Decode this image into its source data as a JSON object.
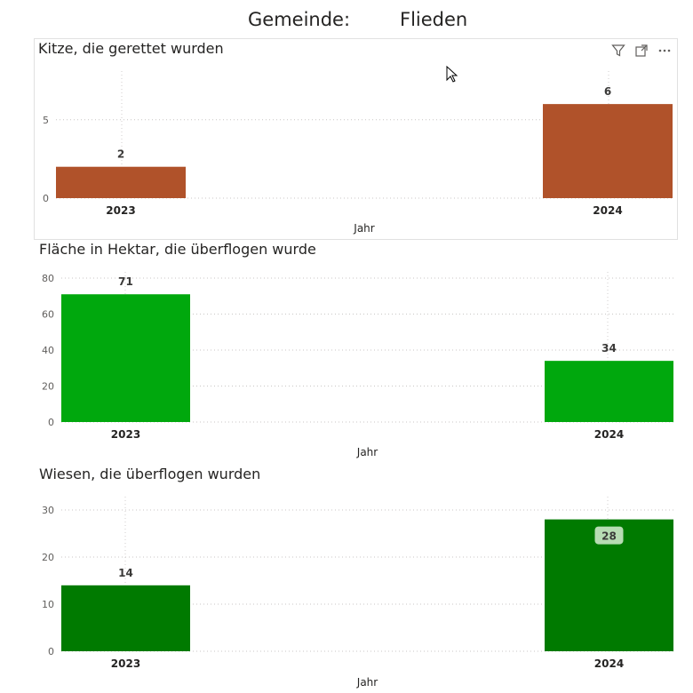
{
  "header": {
    "label": "Gemeinde:",
    "value": "Flieden"
  },
  "toolbar": {
    "icons": [
      "filter-icon",
      "focus-mode-icon",
      "more-options-icon"
    ]
  },
  "chart_data": [
    {
      "type": "bar",
      "title": "Kitze, die gerettet wurden",
      "categories": [
        "2023",
        "2024"
      ],
      "values": [
        2,
        6
      ],
      "xlabel": "Jahr",
      "ylabel": "",
      "ylim": [
        0,
        6.8
      ],
      "yticks": [
        0,
        5
      ],
      "color": "#b0522a",
      "grid": true
    },
    {
      "type": "bar",
      "title": "Fläche in Hektar, die überflogen wurde",
      "categories": [
        "2023",
        "2024"
      ],
      "values": [
        71,
        34
      ],
      "xlabel": "Jahr",
      "ylabel": "",
      "ylim": [
        0,
        80
      ],
      "yticks": [
        0,
        20,
        40,
        60,
        80
      ],
      "color": "#00a80d",
      "grid": true
    },
    {
      "type": "bar",
      "title": "Wiesen, die überflogen wurden",
      "categories": [
        "2023",
        "2024"
      ],
      "values": [
        14,
        28
      ],
      "xlabel": "Jahr",
      "ylabel": "",
      "ylim": [
        0,
        30
      ],
      "yticks": [
        0,
        10,
        20,
        30
      ],
      "color": "#007a00",
      "grid": true,
      "highlighted_label": "2024"
    }
  ]
}
